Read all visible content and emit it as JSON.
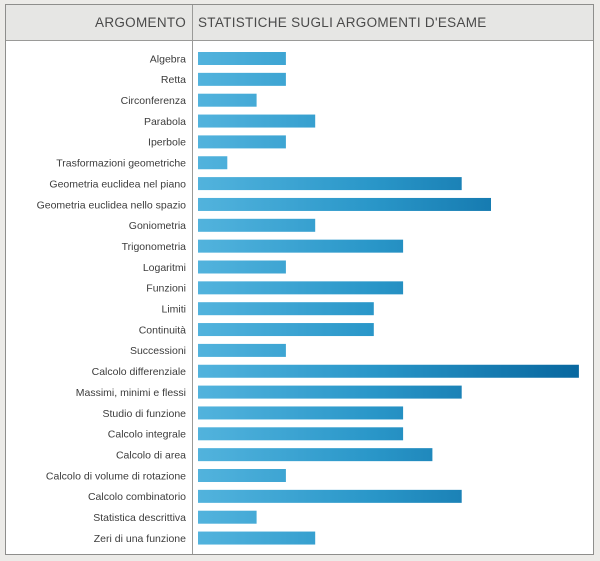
{
  "header": {
    "left_title": "ARGOMENTO",
    "right_title": "STATISTICHE SUGLI ARGOMENTI D'ESAME"
  },
  "colors": {
    "bar_light": "#52b3dd",
    "bar_mid": "#2a97c9",
    "bar_dark": "#08679f"
  },
  "chart_data": {
    "type": "bar",
    "orientation": "horizontal",
    "title": "STATISTICHE SUGLI ARGOMENTI D'ESAME",
    "ylabel": "ARGOMENTO",
    "xlabel": "",
    "grid": false,
    "legend": "none",
    "xlim": [
      0,
      13
    ],
    "categories": [
      "Algebra",
      "Retta",
      "Circonferenza",
      "Parabola",
      "Iperbole",
      "Trasformazioni geometriche",
      "Geometria euclidea nel piano",
      "Geometria euclidea nello spazio",
      "Goniometria",
      "Trigonometria",
      "Logaritmi",
      "Funzioni",
      "Limiti",
      "Continuità",
      "Successioni",
      "Calcolo differenziale",
      "Massimi, minimi e flessi",
      "Studio di funzione",
      "Calcolo integrale",
      "Calcolo di area",
      "Calcolo di volume di rotazione",
      "Calcolo combinatorio",
      "Statistica descrittiva",
      "Zeri di una funzione"
    ],
    "values": [
      3,
      3,
      2,
      4,
      3,
      1,
      9,
      10,
      4,
      7,
      3,
      7,
      6,
      6,
      3,
      13,
      9,
      7,
      7,
      8,
      3,
      9,
      2,
      4
    ]
  }
}
